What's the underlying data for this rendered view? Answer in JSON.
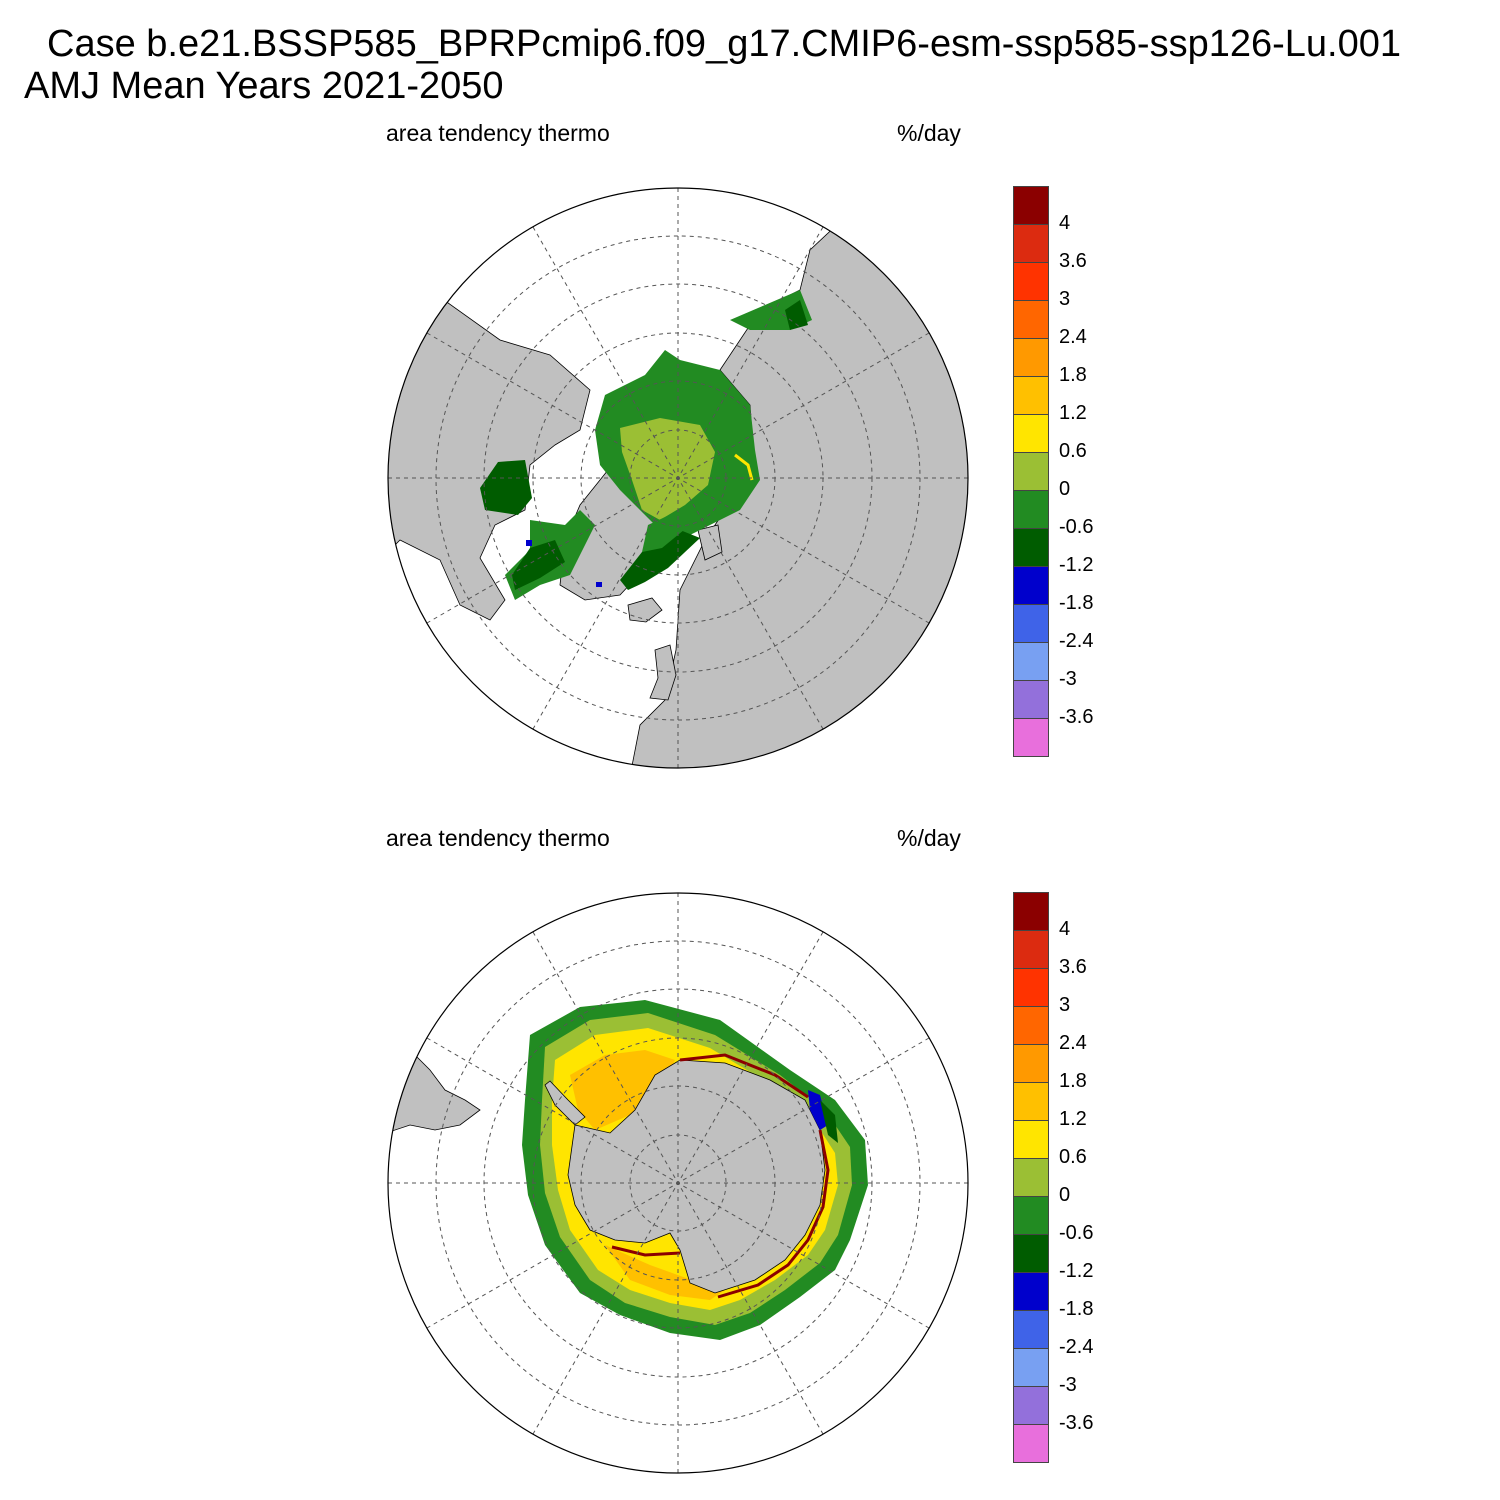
{
  "title": {
    "line1": "Case b.e21.BSSP585_BPRPcmip6.f09_g17.CMIP6-esm-ssp585-ssp126-Lu.001",
    "line2": "AMJ Mean   Years 2021-2050"
  },
  "panels": [
    {
      "id": "north",
      "left_label": "area tendency thermo",
      "right_label": "%/day",
      "hemisphere": "north-polar-stereographic"
    },
    {
      "id": "south",
      "left_label": "area tendency thermo",
      "right_label": "%/day",
      "hemisphere": "south-polar-stereographic"
    }
  ],
  "colorbar": {
    "colors": [
      "#8b0000",
      "#dc2b10",
      "#ff3300",
      "#ff6600",
      "#ff9900",
      "#ffc000",
      "#ffe500",
      "#9bbf34",
      "#228b22",
      "#005c00",
      "#0000cc",
      "#3f63e8",
      "#78a0f2",
      "#9370db",
      "#e86fdc"
    ],
    "labels": [
      "4",
      "3.6",
      "3",
      "2.4",
      "1.8",
      "1.2",
      "0.6",
      "0",
      "-0.6",
      "-1.2",
      "-1.8",
      "-2.4",
      "-3",
      "-3.6"
    ]
  },
  "map_colors": {
    "land": "#c0c0c0",
    "ocean": "#ffffff",
    "grid": "#555555"
  }
}
